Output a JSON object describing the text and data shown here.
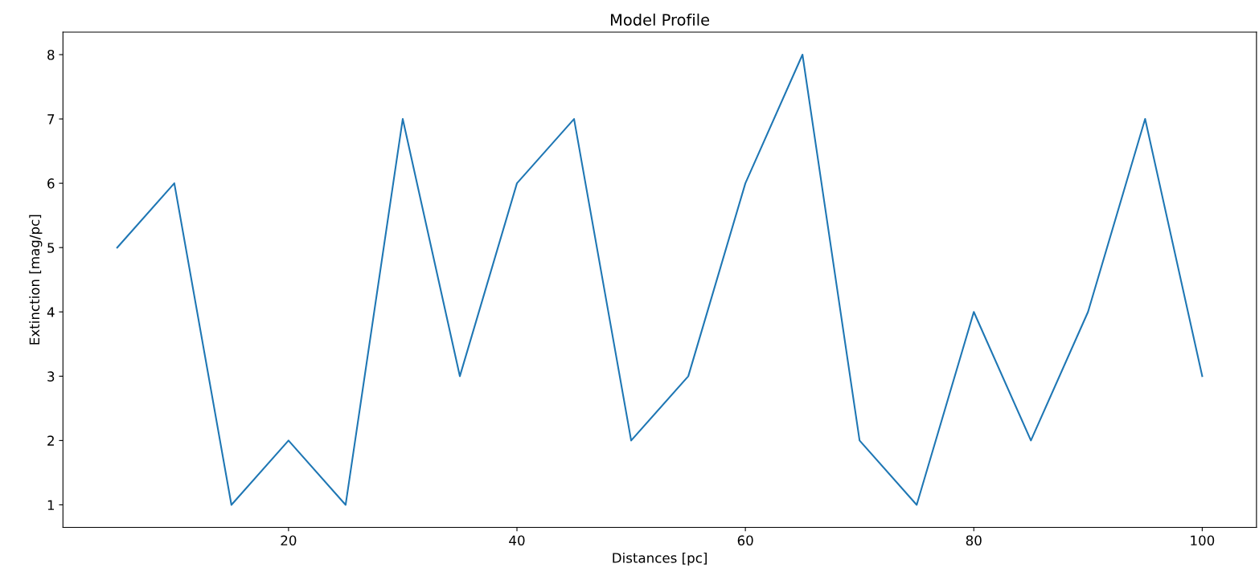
{
  "chart_data": {
    "type": "line",
    "title": "Model Profile",
    "xlabel": "Distances [pc]",
    "ylabel": "Extinction [mag/pc]",
    "x": [
      5,
      10,
      15,
      20,
      25,
      30,
      35,
      40,
      45,
      50,
      55,
      60,
      65,
      70,
      75,
      80,
      85,
      90,
      95,
      100
    ],
    "series": [
      {
        "color": "#1f77b4",
        "values": [
          5,
          6,
          1,
          2,
          1,
          7,
          3,
          6,
          7,
          2,
          3,
          6,
          8,
          2,
          1,
          4,
          2,
          4,
          7,
          3
        ]
      }
    ],
    "xlim": [
      0.25,
      104.75
    ],
    "ylim": [
      0.65,
      8.35
    ],
    "xticks": [
      20,
      40,
      60,
      80,
      100
    ],
    "yticks": [
      1,
      2,
      3,
      4,
      5,
      6,
      7,
      8
    ],
    "grid": false,
    "legend": false,
    "marker": "none",
    "line_style": "solid"
  }
}
